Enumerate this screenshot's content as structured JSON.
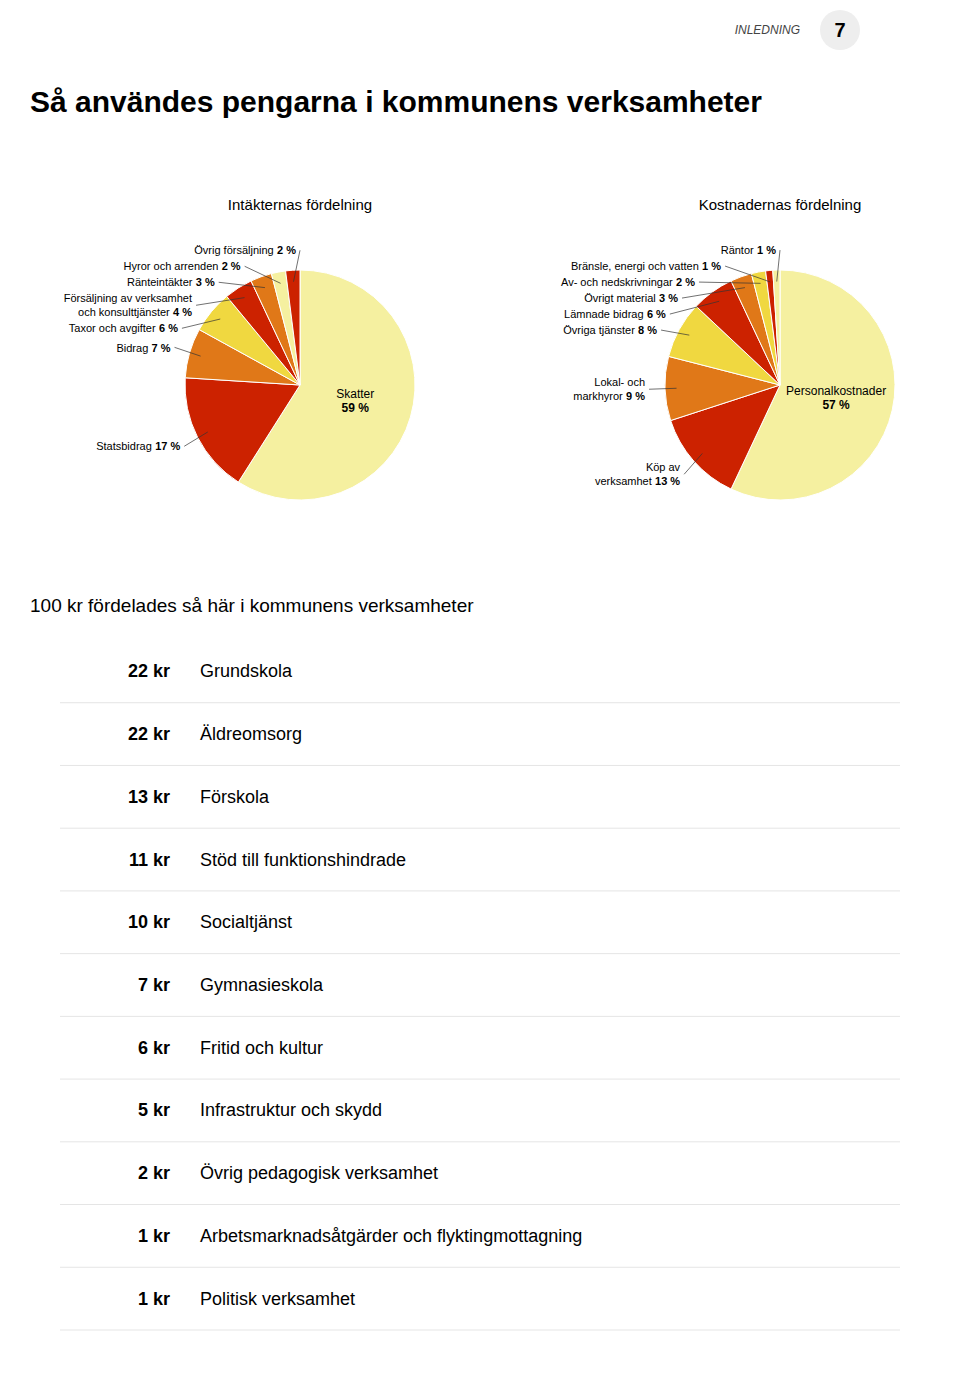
{
  "title": "Så användes pengarna i kommunens verksamheter",
  "annotations": [
    "INLEDNING",
    "7"
  ],
  "chart_data": [
    {
      "type": "pie",
      "title": "Intäkternas fördelning",
      "categories": [
        "Skatter",
        "Statsbidrag",
        "Bidrag",
        "Taxor och avgifter",
        "Försäljning av verksamhet\noch konsulttjänster",
        "Ränteintäkter",
        "Hyror och arrenden",
        "Övrig försäljning"
      ],
      "values": [
        59,
        17,
        7,
        6,
        4,
        3,
        2,
        2
      ],
      "value_labels": [
        "59 %",
        "17 %",
        "7 %",
        "6 %",
        "4 %",
        "3 %",
        "2 %",
        "2 %"
      ],
      "colors": [
        "#f5f0a0",
        "#cc2200",
        "#e07818",
        "#f0d840",
        "#cc2200",
        "#e07818",
        "#f5f0a0",
        "#cc2200"
      ],
      "data_labels": true
    },
    {
      "type": "pie",
      "title": "Kostnadernas fördelning",
      "categories": [
        "Personalkostnader",
        "Köp av\nverksamhet",
        "Lokal- och\nmarkhyror",
        "Övriga tjänster",
        "Lämnade bidrag",
        "Övrigt material",
        "Av- och nedskrivningar",
        "Bränsle, energi och vatten",
        "Räntor"
      ],
      "values": [
        57,
        13,
        9,
        8,
        6,
        3,
        2,
        1,
        1
      ],
      "value_labels": [
        "57 %",
        "13 %",
        "9 %",
        "8 %",
        "6 %",
        "3 %",
        "2 %",
        "1 %",
        "1 %"
      ],
      "colors": [
        "#f5f0a0",
        "#cc2200",
        "#e07818",
        "#f0d840",
        "#cc2200",
        "#e07818",
        "#f0d840",
        "#cc2200",
        "#f5f0a0"
      ],
      "data_labels": true
    },
    {
      "type": "table",
      "title": "100 kr fördelades så här i kommunens verksamheter",
      "categories": [
        "Grundskola",
        "Äldreomsorg",
        "Förskola",
        "Stöd till funktionshindrade",
        "Socialtjänst",
        "Gymnasieskola",
        "Fritid och kultur",
        "Infrastruktur och skydd",
        "Övrig pedagogisk verksamhet",
        "Arbetsmarknadsåtgärder och flyktingmottagning",
        "Politisk verksamhet"
      ],
      "values": [
        22,
        22,
        13,
        11,
        10,
        7,
        6,
        5,
        2,
        1,
        1
      ],
      "value_labels": [
        "22 kr",
        "22 kr",
        "13 kr",
        "11 kr",
        "10 kr",
        "7 kr",
        "6 kr",
        "5 kr",
        "2 kr",
        "1 kr",
        "1 kr"
      ],
      "data_labels": true
    }
  ]
}
